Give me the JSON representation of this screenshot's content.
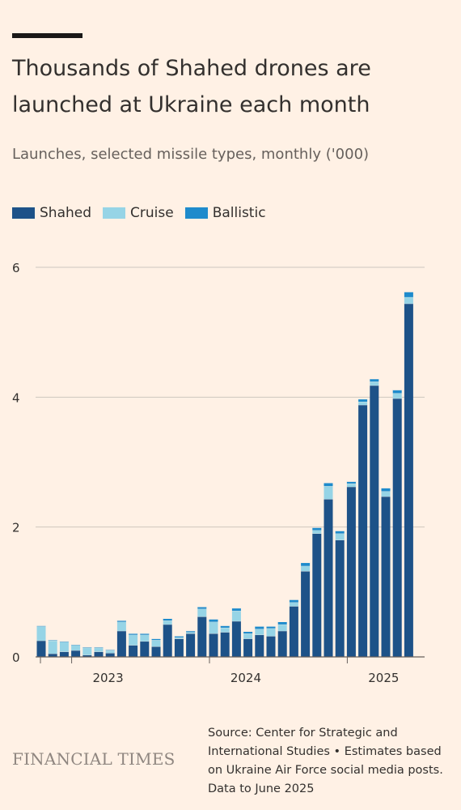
{
  "title": "Thousands of Shahed drones are launched at Ukraine each month",
  "subtitle": "Launches, selected missile types, monthly ('000)",
  "brand": "FINANCIAL TIMES",
  "source": "Source: Center for Strategic and International Studies • Estimates based on Ukraine Air Force social media posts. Data to June 2025",
  "legend": [
    {
      "name": "Shahed",
      "color": "#1D5288"
    },
    {
      "name": "Cruise",
      "color": "#96D4E6"
    },
    {
      "name": "Ballistic",
      "color": "#1E8BCC"
    }
  ],
  "chart_data": {
    "type": "bar",
    "stacked": true,
    "ylim": [
      0,
      6
    ],
    "yticks": [
      0,
      2,
      4,
      6
    ],
    "xticks": [
      "2023",
      "2024",
      "2025"
    ],
    "categories": [
      "Oct 2022",
      "Nov 2022",
      "Dec 2022",
      "Jan 2023",
      "Feb 2023",
      "Mar 2023",
      "Apr 2023",
      "May 2023",
      "Jun 2023",
      "Jul 2023",
      "Aug 2023",
      "Sep 2023",
      "Oct 2023",
      "Nov 2023",
      "Dec 2023",
      "Jan 2024",
      "Feb 2024",
      "Mar 2024",
      "Apr 2024",
      "May 2024",
      "Jun 2024",
      "Jul 2024",
      "Aug 2024",
      "Sep 2024",
      "Oct 2024",
      "Nov 2024",
      "Dec 2024",
      "Jan 2025",
      "Feb 2025",
      "Mar 2025",
      "Apr 2025",
      "May 2025",
      "Jun 2025"
    ],
    "series": [
      {
        "name": "Shahed",
        "color": "#1D5288",
        "values": [
          0.25,
          0.05,
          0.08,
          0.1,
          0.03,
          0.08,
          0.06,
          0.4,
          0.18,
          0.24,
          0.16,
          0.5,
          0.28,
          0.36,
          0.62,
          0.36,
          0.38,
          0.55,
          0.28,
          0.34,
          0.32,
          0.4,
          0.78,
          1.32,
          1.9,
          2.43,
          1.8,
          2.62,
          3.88,
          4.18,
          2.47,
          3.98,
          5.44
        ]
      },
      {
        "name": "Cruise",
        "color": "#96D4E6",
        "values": [
          0.22,
          0.2,
          0.15,
          0.08,
          0.11,
          0.06,
          0.04,
          0.14,
          0.16,
          0.1,
          0.1,
          0.06,
          0.02,
          0.02,
          0.12,
          0.18,
          0.07,
          0.16,
          0.08,
          0.09,
          0.12,
          0.1,
          0.06,
          0.08,
          0.05,
          0.2,
          0.1,
          0.05,
          0.05,
          0.06,
          0.08,
          0.08,
          0.1
        ]
      },
      {
        "name": "Ballistic",
        "color": "#1E8BCC",
        "values": [
          0.01,
          0.01,
          0.01,
          0.01,
          0.01,
          0.01,
          0.01,
          0.02,
          0.02,
          0.02,
          0.02,
          0.03,
          0.02,
          0.02,
          0.03,
          0.04,
          0.03,
          0.04,
          0.03,
          0.04,
          0.03,
          0.04,
          0.04,
          0.05,
          0.04,
          0.05,
          0.04,
          0.03,
          0.04,
          0.04,
          0.05,
          0.05,
          0.08
        ]
      }
    ]
  }
}
